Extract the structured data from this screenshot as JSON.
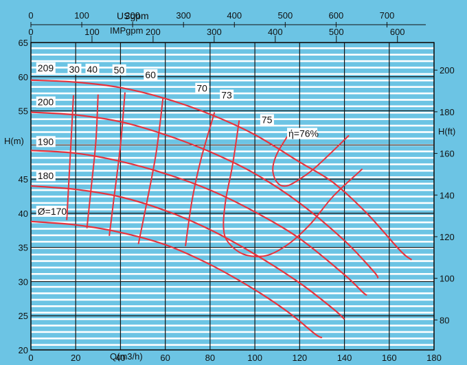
{
  "chart_data": {
    "type": "line",
    "background_color": "#6cc4e4",
    "band_color": "#ffffff",
    "curve_color": "#e8323c",
    "grid_color": "#111111",
    "x_axis": {
      "label": "Q(m3/h)",
      "range": [
        0,
        180
      ],
      "ticks": [
        "0",
        "20",
        "40",
        "60",
        "80",
        "100",
        "120",
        "140",
        "160",
        "180"
      ]
    },
    "y_axis": {
      "label": "H(m)",
      "range": [
        20,
        65
      ],
      "ticks": [
        "20",
        "25",
        "30",
        "35",
        "40",
        "45",
        "",
        "55",
        "60",
        "65"
      ]
    },
    "us_gpm_axis": {
      "label": "USgpm",
      "ticks": [
        "0",
        "100",
        "200",
        "300",
        "400",
        "500",
        "600",
        "700"
      ]
    },
    "imp_gpm_axis": {
      "label": "IMPgpm",
      "ticks": [
        "0",
        "100",
        "200",
        "300",
        "400",
        "500",
        "600"
      ]
    },
    "ft_axis": {
      "label": "H(ft)",
      "ticks": [
        "80",
        "100",
        "120",
        "140",
        "160",
        "180",
        "200"
      ]
    },
    "head_curves": [
      {
        "name": "209",
        "points": [
          [
            0,
            59.5
          ],
          [
            20,
            59.2
          ],
          [
            40,
            58.4
          ],
          [
            60,
            56.8
          ],
          [
            80,
            54.5
          ],
          [
            100,
            51.5
          ],
          [
            120,
            47.5
          ],
          [
            135,
            44.5
          ],
          [
            150,
            40
          ],
          [
            165,
            34.5
          ],
          [
            170,
            33.2
          ]
        ]
      },
      {
        "name": "200",
        "points": [
          [
            0,
            54.8
          ],
          [
            20,
            54.4
          ],
          [
            40,
            53.4
          ],
          [
            60,
            51.5
          ],
          [
            80,
            49
          ],
          [
            100,
            45.8
          ],
          [
            120,
            41.5
          ],
          [
            140,
            36
          ],
          [
            153,
            31.5
          ],
          [
            155,
            30.5
          ]
        ]
      },
      {
        "name": "190",
        "points": [
          [
            0,
            49.2
          ],
          [
            20,
            48.8
          ],
          [
            40,
            47.6
          ],
          [
            60,
            45.8
          ],
          [
            80,
            43.4
          ],
          [
            100,
            40.2
          ],
          [
            120,
            36.3
          ],
          [
            140,
            31
          ],
          [
            148,
            28.5
          ],
          [
            150,
            28
          ]
        ]
      },
      {
        "name": "180",
        "points": [
          [
            0,
            44
          ],
          [
            20,
            43.5
          ],
          [
            40,
            42.4
          ],
          [
            60,
            40.4
          ],
          [
            80,
            37.6
          ],
          [
            100,
            34
          ],
          [
            120,
            29.8
          ],
          [
            135,
            26
          ],
          [
            140,
            24.5
          ]
        ]
      },
      {
        "name": "Ø=170",
        "points": [
          [
            0,
            38.8
          ],
          [
            20,
            38.3
          ],
          [
            40,
            37.2
          ],
          [
            60,
            35.4
          ],
          [
            80,
            32.5
          ],
          [
            100,
            28.8
          ],
          [
            115,
            25.5
          ],
          [
            127,
            22.3
          ],
          [
            130,
            21.8
          ]
        ]
      }
    ],
    "efficiency_curves": [
      {
        "name": "30",
        "points": [
          [
            19,
            57.3
          ],
          [
            18,
            51
          ],
          [
            17,
            45
          ],
          [
            16,
            39
          ]
        ]
      },
      {
        "name": "40",
        "points": [
          [
            30,
            57.4
          ],
          [
            29,
            50.5
          ],
          [
            27,
            44
          ],
          [
            25,
            37.8
          ]
        ]
      },
      {
        "name": "50",
        "points": [
          [
            42,
            57.7
          ],
          [
            40,
            50
          ],
          [
            37,
            42
          ],
          [
            35,
            36.7
          ]
        ]
      },
      {
        "name": "60",
        "points": [
          [
            59,
            56.9
          ],
          [
            56,
            49
          ],
          [
            52,
            42
          ],
          [
            48,
            35.5
          ]
        ]
      },
      {
        "name": "70",
        "points": [
          [
            82,
            54.8
          ],
          [
            76,
            48
          ],
          [
            72,
            42
          ],
          [
            69,
            35.2
          ]
        ]
      },
      {
        "name": "73",
        "points": [
          [
            93,
            53.6
          ],
          [
            90,
            47
          ],
          [
            87,
            42
          ],
          [
            86,
            38
          ],
          [
            88,
            35.8
          ],
          [
            95,
            34
          ],
          [
            105,
            33.8
          ],
          [
            115,
            35.5
          ],
          [
            125,
            38.5
          ],
          [
            135,
            42.5
          ],
          [
            148,
            46.5
          ]
        ]
      },
      {
        "name": "75",
        "points": [
          [
            116,
            52
          ],
          [
            110,
            48.8
          ],
          [
            108,
            46.4
          ],
          [
            110,
            44.5
          ],
          [
            114,
            44
          ],
          [
            120,
            45
          ],
          [
            128,
            47
          ],
          [
            142,
            51.4
          ]
        ]
      }
    ],
    "curve_labels": [
      {
        "text": "209",
        "x": 3,
        "y": 60.8
      },
      {
        "text": "200",
        "x": 3,
        "y": 55.8
      },
      {
        "text": "190",
        "x": 3,
        "y": 50
      },
      {
        "text": "180",
        "x": 3,
        "y": 45
      },
      {
        "text": "Ø=170",
        "x": 3,
        "y": 39.8
      },
      {
        "text": "30",
        "x": 17,
        "y": 60.6
      },
      {
        "text": "40",
        "x": 25,
        "y": 60.6
      },
      {
        "text": "50",
        "x": 37,
        "y": 60.5
      },
      {
        "text": "60",
        "x": 51,
        "y": 59.8
      },
      {
        "text": "70",
        "x": 74,
        "y": 57.8
      },
      {
        "text": "73",
        "x": 85,
        "y": 56.8
      },
      {
        "text": "75",
        "x": 103,
        "y": 53.2
      },
      {
        "text": "ή=76%",
        "x": 115,
        "y": 51.2
      }
    ]
  }
}
